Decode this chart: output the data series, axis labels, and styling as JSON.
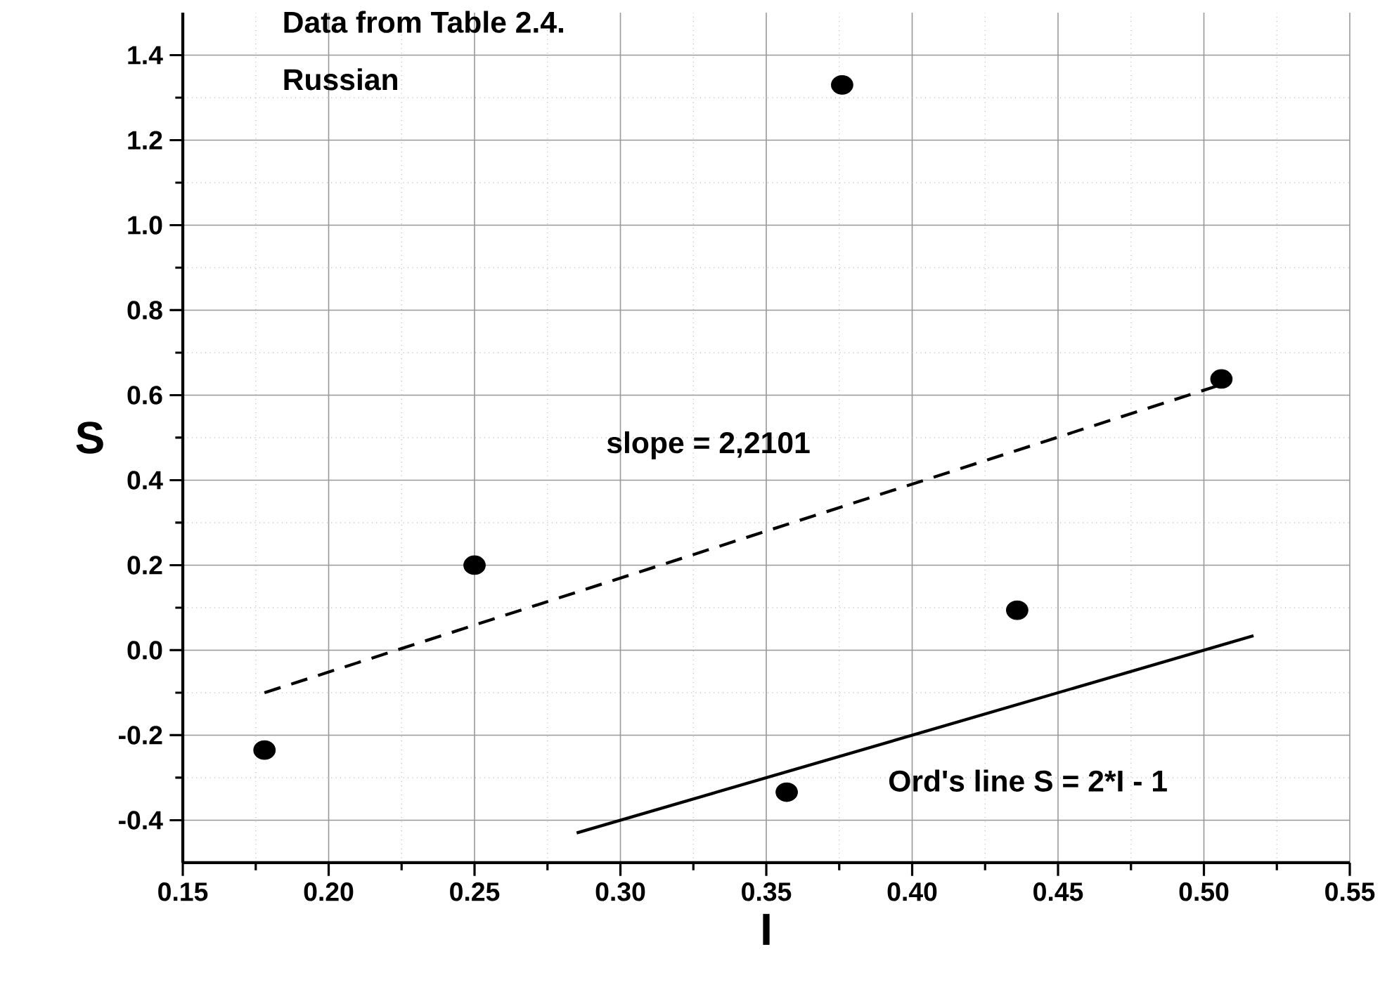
{
  "chart_data": {
    "type": "scatter",
    "xlabel": "I",
    "ylabel": "S",
    "xlim": [
      0.15,
      0.55
    ],
    "ylim": [
      -0.5,
      1.5
    ],
    "xticks": [
      {
        "value": 0.15,
        "label": "0.15"
      },
      {
        "value": 0.2,
        "label": "0.20"
      },
      {
        "value": 0.25,
        "label": "0.25"
      },
      {
        "value": 0.3,
        "label": "0.30"
      },
      {
        "value": 0.35,
        "label": "0.35"
      },
      {
        "value": 0.4,
        "label": "0.40"
      },
      {
        "value": 0.45,
        "label": "0.45"
      },
      {
        "value": 0.5,
        "label": "0.50"
      },
      {
        "value": 0.55,
        "label": "0.55"
      }
    ],
    "yticks": [
      {
        "value": -0.4,
        "label": "-0.4"
      },
      {
        "value": -0.2,
        "label": "-0.2"
      },
      {
        "value": 0,
        "label": "0.0"
      },
      {
        "value": 0.2,
        "label": "0.2"
      },
      {
        "value": 0.4,
        "label": "0.4"
      },
      {
        "value": 0.6,
        "label": "0.6"
      },
      {
        "value": 0.8,
        "label": "0.8"
      },
      {
        "value": 1.0,
        "label": "1.0"
      },
      {
        "value": 1.2,
        "label": "1.2"
      },
      {
        "value": 1.4,
        "label": "1.4"
      }
    ],
    "grid": true,
    "series": [
      {
        "color": "#000000",
        "marker": "circle",
        "x": [
          0.178,
          0.25,
          0.376,
          0.357,
          0.436,
          0.506
        ],
        "values": [
          -0.235,
          0.2,
          1.33,
          -0.334,
          0.094,
          0.638
        ]
      },
      {
        "type": "line",
        "color": "#000000",
        "marker": "none",
        "line_style": "dashed",
        "x": [
          0.178,
          0.506
        ],
        "values": [
          -0.1,
          0.625
        ]
      },
      {
        "type": "line",
        "color": "#000000",
        "marker": "none",
        "line_style": "solid",
        "x": [
          0.285,
          0.517
        ],
        "values": [
          -0.43,
          0.034
        ]
      }
    ],
    "annotations": [
      "Data from Table 2.4.",
      "Russian",
      "slope = 2,2101",
      "Ord's line S = 2*I - 1"
    ]
  }
}
